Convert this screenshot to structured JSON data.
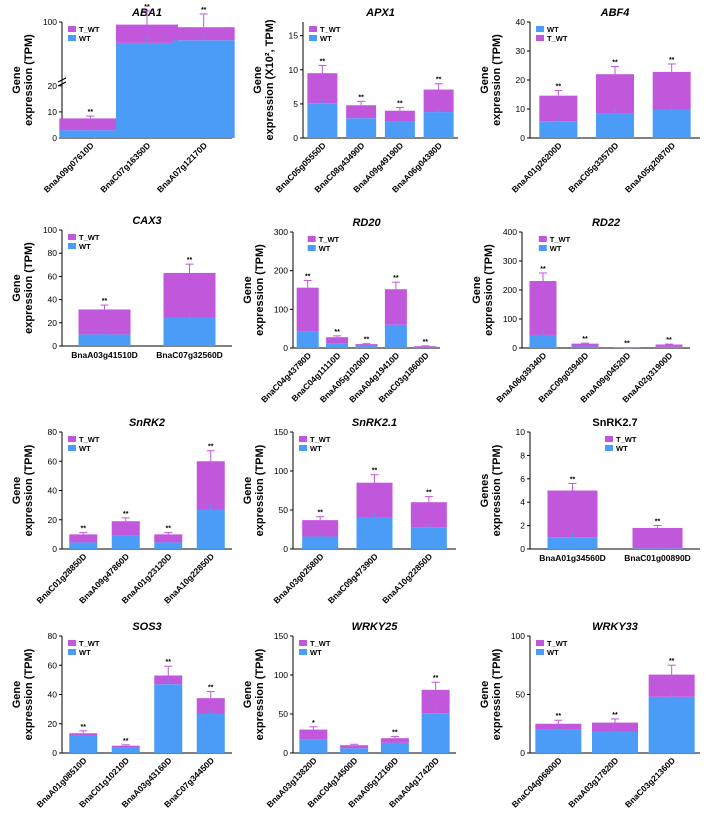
{
  "colors": {
    "wt": "#4a9cf7",
    "t_wt": "#c157db",
    "axis": "#000000"
  },
  "chart_data": [
    {
      "type": "bar",
      "stacked": true,
      "title": "ABA1",
      "ylabel_lines": [
        "Gene",
        "expression (TPM)"
      ],
      "ylim": [
        0,
        20
      ],
      "yticks": [
        0,
        10,
        20
      ],
      "axis_break": true,
      "break_label": "100",
      "legend": [
        "T_WT",
        "WT"
      ],
      "legend_position": "top-left",
      "categories": [
        "BnaA09g07610D",
        "BnaC07g16350D",
        "BnaA07g12170D"
      ],
      "series": [
        {
          "name": "WT",
          "values": [
            3,
            80,
            85
          ]
        },
        {
          "name": "T_WT",
          "values": [
            4.5,
            35,
            25
          ]
        }
      ],
      "significance": [
        "**",
        "**",
        "**"
      ]
    },
    {
      "type": "bar",
      "stacked": true,
      "title": "APX1",
      "ylabel_lines": [
        "Gene",
        "expression (X10², TPM)"
      ],
      "ylim": [
        0,
        17
      ],
      "yticks": [
        0,
        5,
        10,
        15
      ],
      "legend": [
        "T_WT",
        "WT"
      ],
      "legend_position": "top-left",
      "categories": [
        "BnaC05g05550D",
        "BnaC08g43490D",
        "BnaA09g49190D",
        "BnaA06g04380D"
      ],
      "series": [
        {
          "name": "WT",
          "values": [
            5.1,
            2.9,
            2.4,
            3.8
          ]
        },
        {
          "name": "T_WT",
          "values": [
            4.4,
            1.9,
            1.6,
            3.3
          ]
        }
      ],
      "significance": [
        "**",
        "**",
        "**",
        "**"
      ]
    },
    {
      "type": "bar",
      "stacked": true,
      "title": "ABF4",
      "ylabel_lines": [
        "Gene",
        "expression (TPM)"
      ],
      "ylim": [
        0,
        40
      ],
      "yticks": [
        0,
        10,
        20,
        30,
        40
      ],
      "legend": [
        "WT",
        "T_WT"
      ],
      "legend_position": "top-left",
      "categories": [
        "BnaA01g26200D",
        "BnaC05g33570D",
        "BnaA05g20870D"
      ],
      "series": [
        {
          "name": "WT",
          "values": [
            5.8,
            8.6,
            10
          ]
        },
        {
          "name": "T_WT",
          "values": [
            8.8,
            13.4,
            12.8
          ]
        }
      ],
      "significance": [
        "**",
        "**",
        "**"
      ]
    },
    {
      "type": "bar",
      "stacked": true,
      "title": "CAX3",
      "ylabel_lines": [
        "Gene",
        "expression (TPM)"
      ],
      "ylim": [
        0,
        100
      ],
      "yticks": [
        0,
        20,
        40,
        60,
        80,
        100
      ],
      "legend": [
        "T_WT",
        "WT"
      ],
      "legend_position": "top-left",
      "categories": [
        "BnaA03g41510D",
        "BnaC07g32560D"
      ],
      "series": [
        {
          "name": "WT",
          "values": [
            10,
            25
          ]
        },
        {
          "name": "T_WT",
          "values": [
            21.5,
            38
          ]
        }
      ],
      "significance": [
        "**",
        "**"
      ]
    },
    {
      "type": "bar",
      "stacked": true,
      "title": "RD20",
      "ylabel_lines": [
        "Gene",
        "expression (TPM)"
      ],
      "ylim": [
        0,
        300
      ],
      "yticks": [
        0,
        100,
        200,
        300
      ],
      "legend": [
        "T_WT",
        "WT"
      ],
      "legend_position": "top-right",
      "categories": [
        "BnaC04g43780D",
        "BnaC04g11110D",
        "BnaA05g10200D",
        "BnaA04g19410D",
        "BnaC03g18600D"
      ],
      "series": [
        {
          "name": "WT",
          "values": [
            43,
            11,
            5,
            60,
            3
          ]
        },
        {
          "name": "T_WT",
          "values": [
            113,
            17,
            5,
            92,
            2
          ]
        }
      ],
      "significance": [
        "**",
        "**",
        "**",
        "**",
        "**"
      ]
    },
    {
      "type": "bar",
      "stacked": true,
      "title": "RD22",
      "ylabel_lines": [
        "Gene",
        "expression (TPM)"
      ],
      "ylim": [
        0,
        400
      ],
      "yticks": [
        0,
        100,
        200,
        300,
        400
      ],
      "legend": [
        "T_WT",
        "WT"
      ],
      "legend_position": "top-right",
      "categories": [
        "BnaA06g39340D",
        "BnaC09g03940D",
        "BnaA09g04520D",
        "BnaA02g31900D"
      ],
      "series": [
        {
          "name": "WT",
          "values": [
            45,
            5,
            0.5,
            4
          ]
        },
        {
          "name": "T_WT",
          "values": [
            186,
            10,
            0.5,
            8
          ]
        }
      ],
      "significance": [
        "**",
        "**",
        "**",
        "**"
      ]
    },
    {
      "type": "bar",
      "stacked": true,
      "title": "SnRK2",
      "ylabel_lines": [
        "Gene",
        "expression (TPM)"
      ],
      "ylim": [
        0,
        80
      ],
      "yticks": [
        0,
        20,
        40,
        60,
        80
      ],
      "legend": [
        "T_WT",
        "WT"
      ],
      "legend_position": "top-left",
      "categories": [
        "BnaC01g28850D",
        "BnaA09g47860D",
        "BnaA01g23120D",
        "BnaA10g22850D"
      ],
      "series": [
        {
          "name": "WT",
          "values": [
            4.5,
            9,
            4.5,
            27
          ]
        },
        {
          "name": "T_WT",
          "values": [
            5.5,
            10,
            5.5,
            33
          ]
        }
      ],
      "significance": [
        "**",
        "**",
        "**",
        "**"
      ]
    },
    {
      "type": "bar",
      "stacked": true,
      "title": "SnRK2.1",
      "ylabel_lines": [
        "Gene",
        "expression (TPM)"
      ],
      "ylim": [
        0,
        150
      ],
      "yticks": [
        0,
        50,
        100,
        150
      ],
      "legend": [
        "T_WT",
        "WT"
      ],
      "legend_position": "top-left",
      "categories": [
        "BnaA03g02580D",
        "BnaC09g47390D",
        "BnaA10g22850D"
      ],
      "series": [
        {
          "name": "WT",
          "values": [
            16,
            41,
            28
          ]
        },
        {
          "name": "T_WT",
          "values": [
            21,
            44,
            32
          ]
        }
      ],
      "significance": [
        "**",
        "**",
        "**"
      ]
    },
    {
      "type": "bar",
      "stacked": true,
      "title": "SnRK2.7",
      "title_plain": true,
      "ylabel_lines": [
        "Genes",
        "expression (TPM)"
      ],
      "ylim": [
        0,
        10
      ],
      "yticks": [
        0,
        2,
        4,
        6,
        8,
        10
      ],
      "legend": [
        "T_WT",
        "WT"
      ],
      "legend_position": "top-center",
      "categories": [
        "BnaA01g34560D",
        "BnaC01g00890D"
      ],
      "series": [
        {
          "name": "WT",
          "values": [
            1,
            0.05
          ]
        },
        {
          "name": "T_WT",
          "values": [
            4,
            1.75
          ]
        }
      ],
      "significance": [
        "**",
        "**"
      ]
    },
    {
      "type": "bar",
      "stacked": true,
      "title": "SOS3",
      "ylabel_lines": [
        "Gene",
        "expression (TPM)"
      ],
      "ylim": [
        0,
        80
      ],
      "yticks": [
        0,
        20,
        40,
        60,
        80
      ],
      "legend": [
        "T_WT",
        "WT"
      ],
      "legend_position": "top-left",
      "categories": [
        "BnaA01g08510D",
        "BnaC01g10210D",
        "BnaA03g43160D",
        "BnaC07g34450D"
      ],
      "series": [
        {
          "name": "WT",
          "values": [
            12,
            3.5,
            47,
            27
          ]
        },
        {
          "name": "T_WT",
          "values": [
            1.5,
            1.5,
            6,
            10.5
          ]
        }
      ],
      "significance": [
        "**",
        "**",
        "**",
        "**"
      ]
    },
    {
      "type": "bar",
      "stacked": true,
      "title": "WRKY25",
      "ylabel_lines": [
        "Gene",
        "expression (TPM)"
      ],
      "ylim": [
        0,
        150
      ],
      "yticks": [
        0,
        50,
        100,
        150
      ],
      "legend": [
        "T_WT",
        "WT"
      ],
      "legend_position": "top-left",
      "categories": [
        "BnaA03g13820D",
        "BnaC04g14500D",
        "BnaA05g12160D",
        "BnaA04g17420D"
      ],
      "series": [
        {
          "name": "WT",
          "values": [
            17,
            6,
            13,
            51
          ]
        },
        {
          "name": "T_WT",
          "values": [
            13,
            4,
            6,
            30
          ]
        }
      ],
      "significance": [
        "*",
        "",
        "**",
        "**"
      ]
    },
    {
      "type": "bar",
      "stacked": true,
      "title": "WRKY33",
      "ylabel_lines": [
        "Gene",
        "expression (TPM)"
      ],
      "ylim": [
        0,
        100
      ],
      "yticks": [
        0,
        50,
        100
      ],
      "legend": [
        "T_WT",
        "WT"
      ],
      "legend_position": "top-left",
      "categories": [
        "BnaC04g06800D",
        "BnaA03g17820D",
        "BnaC03g21360D"
      ],
      "series": [
        {
          "name": "WT",
          "values": [
            20,
            18,
            48
          ]
        },
        {
          "name": "T_WT",
          "values": [
            5,
            8,
            19
          ]
        }
      ],
      "significance": [
        "**",
        "**",
        "**"
      ]
    }
  ]
}
